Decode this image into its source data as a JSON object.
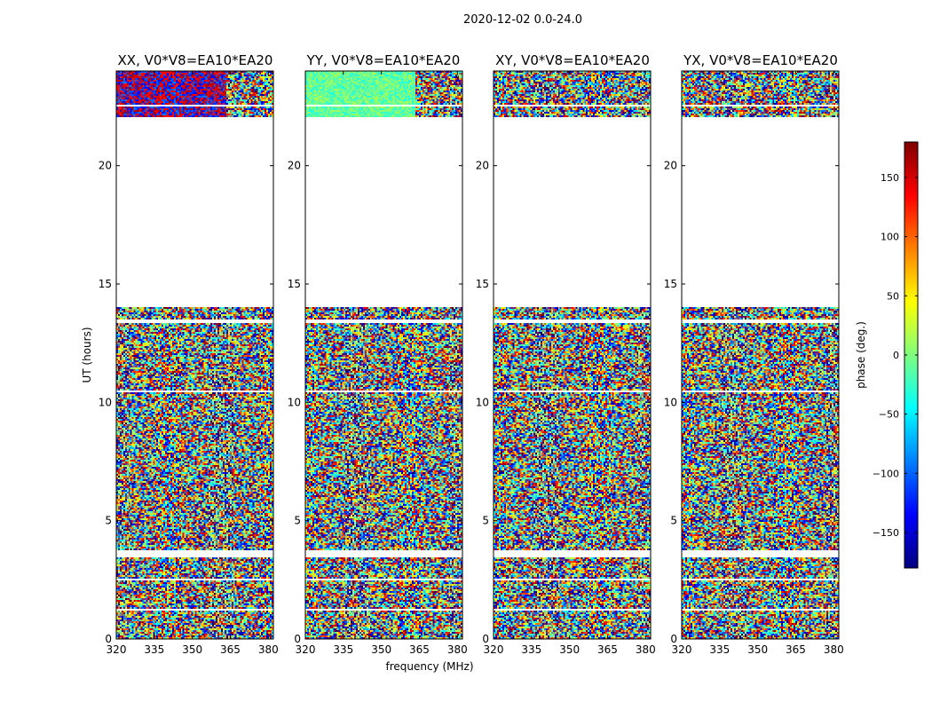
{
  "figure": {
    "suptitle": "2020-12-02 0.0-24.0"
  },
  "chart_data": [
    {
      "type": "heatmap",
      "title": "XX, V0*V8=EA10*EA20",
      "xlabel": "frequency (MHz)",
      "ylabel": "UT (hours)",
      "xlim": [
        320,
        382
      ],
      "ylim": [
        0,
        24
      ],
      "xticks": [
        320,
        335,
        350,
        365,
        380
      ],
      "yticks": [
        0,
        5,
        10,
        15,
        20
      ],
      "value": "phase (deg.)",
      "value_range": [
        -180,
        180
      ],
      "data_blocks": [
        [
          0.0,
          1.2
        ],
        [
          1.3,
          1.45
        ],
        [
          1.5,
          2.45
        ],
        [
          2.6,
          3.45
        ],
        [
          3.8,
          5.9
        ],
        [
          5.95,
          8.0
        ],
        [
          8.1,
          10.4
        ],
        [
          10.5,
          12.1
        ],
        [
          12.15,
          13.1
        ],
        [
          13.2,
          13.3
        ],
        [
          13.5,
          14.0
        ],
        [
          22.1,
          22.5
        ],
        [
          22.6,
          23.1
        ],
        [
          23.2,
          24.0
        ]
      ]
    },
    {
      "type": "heatmap",
      "title": "YY, V0*V8=EA10*EA20",
      "xlabel": "frequency (MHz)",
      "ylabel": "UT (hours)",
      "xlim": [
        320,
        382
      ],
      "ylim": [
        0,
        24
      ],
      "xticks": [
        320,
        335,
        350,
        365,
        380
      ],
      "yticks": [
        0,
        5,
        10,
        15,
        20
      ],
      "value": "phase (deg.)",
      "value_range": [
        -180,
        180
      ],
      "data_blocks": [
        [
          0.0,
          1.2
        ],
        [
          1.3,
          1.45
        ],
        [
          1.5,
          2.45
        ],
        [
          2.6,
          3.45
        ],
        [
          3.8,
          5.9
        ],
        [
          5.95,
          8.0
        ],
        [
          8.1,
          10.4
        ],
        [
          10.5,
          12.1
        ],
        [
          12.15,
          13.1
        ],
        [
          13.2,
          13.3
        ],
        [
          13.5,
          14.0
        ],
        [
          22.1,
          22.5
        ],
        [
          22.6,
          23.1
        ],
        [
          23.2,
          24.0
        ]
      ]
    },
    {
      "type": "heatmap",
      "title": "XY, V0*V8=EA10*EA20",
      "xlabel": "frequency (MHz)",
      "ylabel": "UT (hours)",
      "xlim": [
        320,
        382
      ],
      "ylim": [
        0,
        24
      ],
      "xticks": [
        320,
        335,
        350,
        365,
        380
      ],
      "yticks": [
        0,
        5,
        10,
        15,
        20
      ],
      "value": "phase (deg.)",
      "value_range": [
        -180,
        180
      ],
      "data_blocks": [
        [
          0.0,
          1.2
        ],
        [
          1.3,
          1.45
        ],
        [
          1.5,
          2.45
        ],
        [
          2.6,
          3.45
        ],
        [
          3.8,
          5.9
        ],
        [
          5.95,
          8.0
        ],
        [
          8.1,
          10.4
        ],
        [
          10.5,
          12.1
        ],
        [
          12.15,
          13.1
        ],
        [
          13.2,
          13.3
        ],
        [
          13.5,
          14.0
        ],
        [
          22.1,
          22.5
        ],
        [
          22.6,
          23.1
        ],
        [
          23.2,
          24.0
        ]
      ]
    },
    {
      "type": "heatmap",
      "title": "YX, V0*V8=EA10*EA20",
      "xlabel": "frequency (MHz)",
      "ylabel": "UT (hours)",
      "xlim": [
        320,
        382
      ],
      "ylim": [
        0,
        24
      ],
      "xticks": [
        320,
        335,
        350,
        365,
        380
      ],
      "yticks": [
        0,
        5,
        10,
        15,
        20
      ],
      "value": "phase (deg.)",
      "value_range": [
        -180,
        180
      ],
      "data_blocks": [
        [
          0.0,
          1.2
        ],
        [
          1.3,
          1.45
        ],
        [
          1.5,
          2.45
        ],
        [
          2.6,
          3.45
        ],
        [
          3.8,
          5.9
        ],
        [
          5.95,
          8.0
        ],
        [
          8.1,
          10.4
        ],
        [
          10.5,
          12.1
        ],
        [
          12.15,
          13.1
        ],
        [
          13.2,
          13.3
        ],
        [
          13.5,
          14.0
        ],
        [
          22.1,
          22.5
        ],
        [
          22.6,
          23.1
        ],
        [
          23.2,
          24.0
        ]
      ]
    }
  ],
  "colorbar": {
    "label": "phase (deg.)",
    "range": [
      -180,
      180
    ],
    "ticks": [
      -150,
      -100,
      -50,
      0,
      50,
      100,
      150
    ],
    "tick_labels": [
      "−150",
      "−100",
      "−50",
      "0",
      "50",
      "100",
      "150"
    ]
  },
  "colors": {
    "jet_stops": [
      "#00007f",
      "#0000ff",
      "#007fff",
      "#00ffff",
      "#7fff7f",
      "#ffff00",
      "#ff7f00",
      "#ff0000",
      "#7f0000"
    ],
    "axes": "#000000",
    "background": "#ffffff"
  }
}
